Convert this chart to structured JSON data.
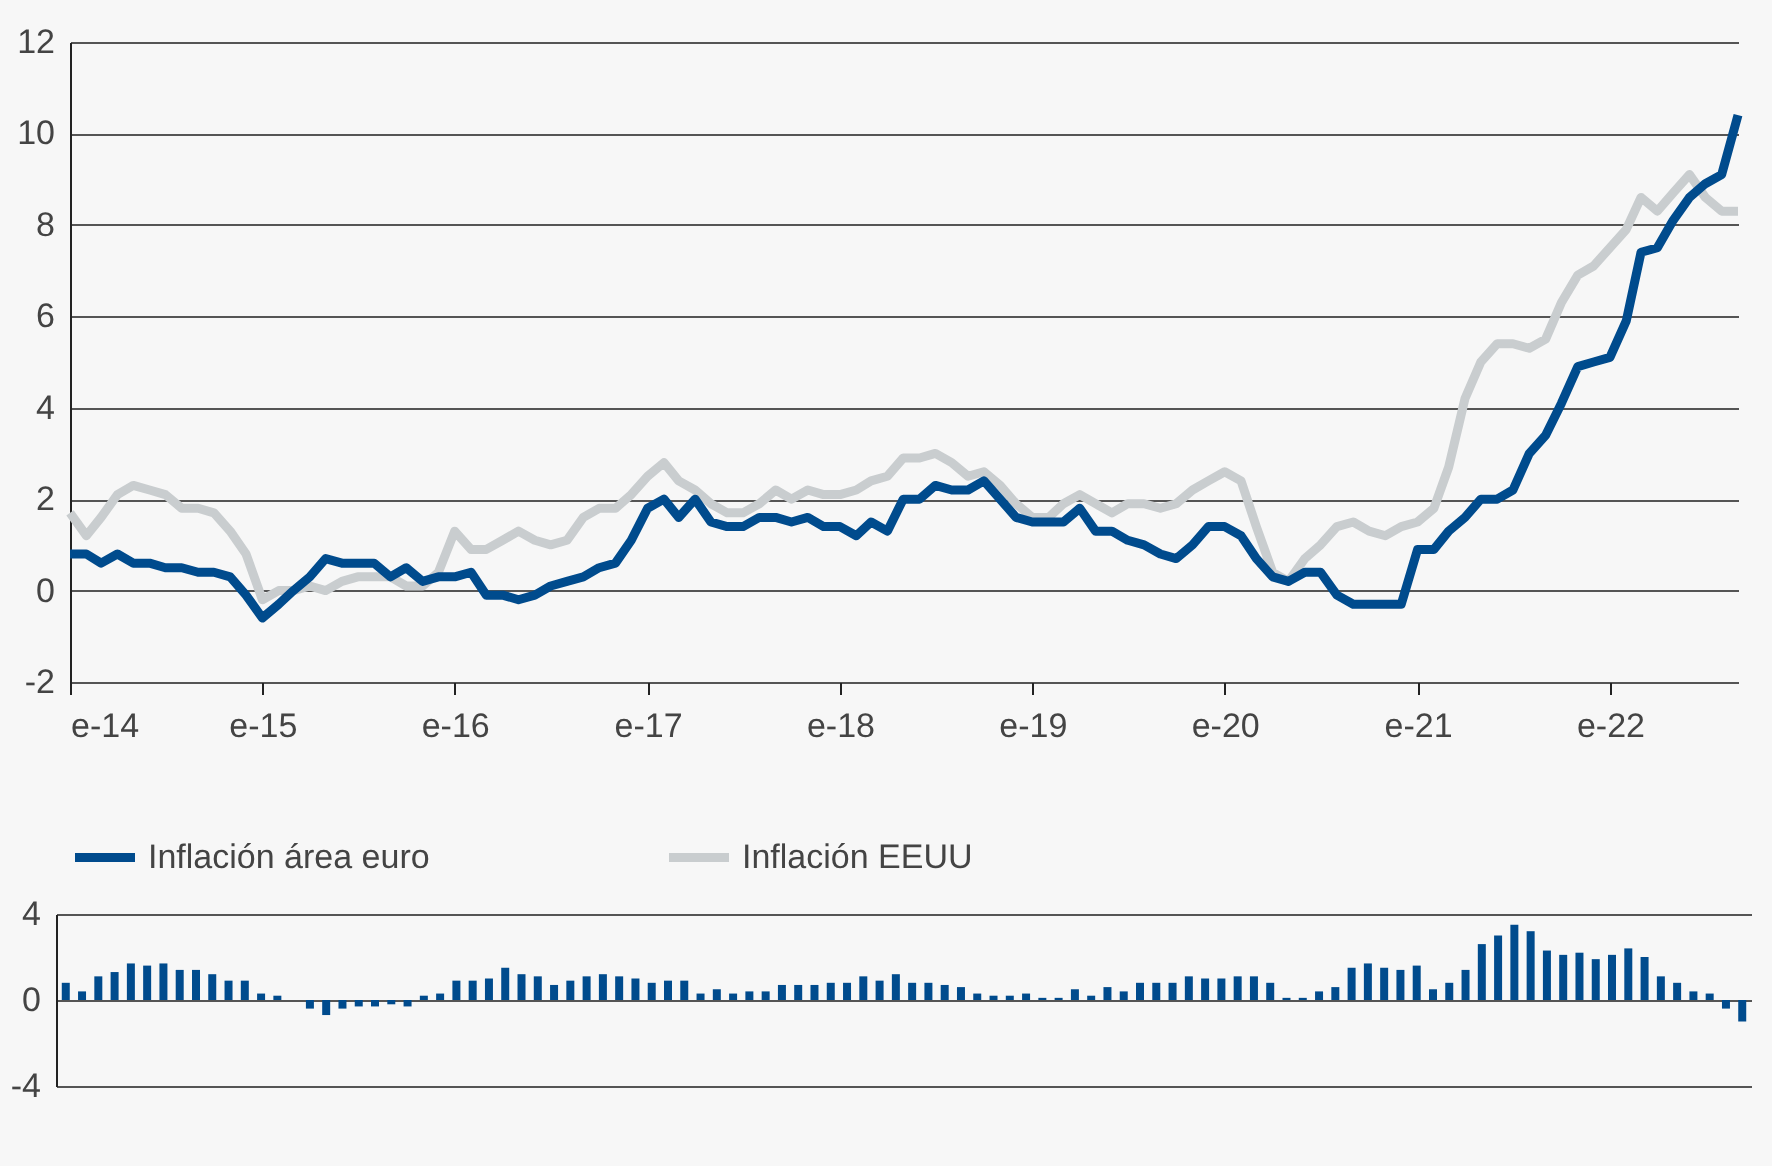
{
  "chart_data": [
    {
      "type": "line",
      "x": [
        "2014-01",
        "2014-02",
        "2014-03",
        "2014-04",
        "2014-05",
        "2014-06",
        "2014-07",
        "2014-08",
        "2014-09",
        "2014-10",
        "2014-11",
        "2014-12",
        "2015-01",
        "2015-02",
        "2015-03",
        "2015-04",
        "2015-05",
        "2015-06",
        "2015-07",
        "2015-08",
        "2015-09",
        "2015-10",
        "2015-11",
        "2015-12",
        "2016-01",
        "2016-02",
        "2016-03",
        "2016-04",
        "2016-05",
        "2016-06",
        "2016-07",
        "2016-08",
        "2016-09",
        "2016-10",
        "2016-11",
        "2016-12",
        "2017-01",
        "2017-02",
        "2017-03",
        "2017-04",
        "2017-05",
        "2017-06",
        "2017-07",
        "2017-08",
        "2017-09",
        "2017-10",
        "2017-11",
        "2017-12",
        "2018-01",
        "2018-02",
        "2018-03",
        "2018-04",
        "2018-05",
        "2018-06",
        "2018-07",
        "2018-08",
        "2018-09",
        "2018-10",
        "2018-11",
        "2018-12",
        "2019-01",
        "2019-02",
        "2019-03",
        "2019-04",
        "2019-05",
        "2019-06",
        "2019-07",
        "2019-08",
        "2019-09",
        "2019-10",
        "2019-11",
        "2019-12",
        "2020-01",
        "2020-02",
        "2020-03",
        "2020-04",
        "2020-05",
        "2020-06",
        "2020-07",
        "2020-08",
        "2020-09",
        "2020-10",
        "2020-11",
        "2020-12",
        "2021-01",
        "2021-02",
        "2021-03",
        "2021-04",
        "2021-05",
        "2021-06",
        "2021-07",
        "2021-08",
        "2021-09",
        "2021-10",
        "2021-11",
        "2021-12",
        "2022-01",
        "2022-02",
        "2022-03",
        "2022-04",
        "2022-05",
        "2022-06",
        "2022-07",
        "2022-08",
        "2022-09"
      ],
      "series": [
        {
          "name": "Inflación área euro",
          "color": "#004b8d",
          "values": [
            0.8,
            0.8,
            0.6,
            0.8,
            0.6,
            0.6,
            0.5,
            0.5,
            0.4,
            0.4,
            0.3,
            -0.1,
            -0.6,
            -0.3,
            0.0,
            0.3,
            0.7,
            0.6,
            0.6,
            0.6,
            0.3,
            0.5,
            0.2,
            0.3,
            0.3,
            0.4,
            -0.1,
            -0.1,
            -0.2,
            -0.1,
            0.1,
            0.2,
            0.3,
            0.5,
            0.6,
            1.1,
            1.8,
            2.0,
            1.6,
            2.0,
            1.5,
            1.4,
            1.4,
            1.6,
            1.6,
            1.5,
            1.6,
            1.4,
            1.4,
            1.2,
            1.5,
            1.3,
            2.0,
            2.0,
            2.3,
            2.2,
            2.2,
            2.4,
            2.0,
            1.6,
            1.5,
            1.5,
            1.5,
            1.8,
            1.3,
            1.3,
            1.1,
            1.0,
            0.8,
            0.7,
            1.0,
            1.4,
            1.4,
            1.2,
            0.7,
            0.3,
            0.2,
            0.4,
            0.4,
            -0.1,
            -0.3,
            -0.3,
            -0.3,
            -0.3,
            0.9,
            0.9,
            1.3,
            1.6,
            2.0,
            2.0,
            2.2,
            3.0,
            3.4,
            4.1,
            4.9,
            5.0,
            5.1,
            5.9,
            7.4,
            7.5,
            8.1,
            8.6,
            8.9,
            9.1,
            10.4
          ]
        },
        {
          "name": "Inflación EEUU",
          "color": "#c9cdcf",
          "values": [
            1.7,
            1.2,
            1.6,
            2.1,
            2.3,
            2.2,
            2.1,
            1.8,
            1.8,
            1.7,
            1.3,
            0.8,
            -0.2,
            0.0,
            0.0,
            0.1,
            0.0,
            0.2,
            0.3,
            0.3,
            0.3,
            0.1,
            0.1,
            0.4,
            1.3,
            0.9,
            0.9,
            1.1,
            1.3,
            1.1,
            1.0,
            1.1,
            1.6,
            1.8,
            1.8,
            2.1,
            2.5,
            2.8,
            2.4,
            2.2,
            1.9,
            1.7,
            1.7,
            1.9,
            2.2,
            2.0,
            2.2,
            2.1,
            2.1,
            2.2,
            2.4,
            2.5,
            2.9,
            2.9,
            3.0,
            2.8,
            2.5,
            2.6,
            2.3,
            1.9,
            1.6,
            1.6,
            1.9,
            2.1,
            1.9,
            1.7,
            1.9,
            1.9,
            1.8,
            1.9,
            2.2,
            2.4,
            2.6,
            2.4,
            1.4,
            0.4,
            0.2,
            0.7,
            1.0,
            1.4,
            1.5,
            1.3,
            1.2,
            1.4,
            1.5,
            1.8,
            2.7,
            4.2,
            5.0,
            5.4,
            5.4,
            5.3,
            5.5,
            6.3,
            6.9,
            7.1,
            7.5,
            7.9,
            8.6,
            8.3,
            8.7,
            9.1,
            8.6,
            8.3,
            8.3
          ]
        }
      ],
      "xlim": [
        "2014-01",
        "2022-09"
      ],
      "xticks": [
        {
          "value": "2014-01",
          "label": "e-14"
        },
        {
          "value": "2015-01",
          "label": "e-15"
        },
        {
          "value": "2016-01",
          "label": "e-16"
        },
        {
          "value": "2017-01",
          "label": "e-17"
        },
        {
          "value": "2018-01",
          "label": "e-18"
        },
        {
          "value": "2019-01",
          "label": "e-19"
        },
        {
          "value": "2020-01",
          "label": "e-20"
        },
        {
          "value": "2021-01",
          "label": "e-21"
        },
        {
          "value": "2022-01",
          "label": "e-22"
        }
      ],
      "ylim": [
        -2,
        12
      ],
      "yticks": [
        -2,
        0,
        2,
        4,
        6,
        8,
        10,
        12
      ],
      "grid": "y",
      "legend": "bottom",
      "line_style": "solid"
    },
    {
      "type": "bar",
      "categories": [
        null,
        null,
        null,
        null,
        null,
        null,
        null,
        null,
        null,
        null,
        null,
        null,
        null,
        null,
        null,
        null,
        null,
        null,
        null,
        null,
        null,
        null,
        null,
        null,
        null,
        null,
        null,
        null,
        null,
        null,
        null,
        null,
        null,
        null,
        null,
        null,
        null,
        null,
        null,
        null,
        null,
        null,
        null,
        null,
        null,
        null,
        null,
        null,
        null,
        null,
        null,
        null,
        null,
        null,
        null,
        null,
        null,
        null,
        null,
        null,
        null,
        null,
        null,
        null,
        null,
        null,
        null,
        null,
        null,
        null,
        null,
        null,
        null,
        null,
        null,
        null,
        null,
        null,
        null,
        null,
        null,
        null,
        null,
        null,
        null,
        null,
        null,
        null,
        null,
        null,
        null,
        null,
        null,
        null,
        null,
        null,
        null,
        null,
        null,
        null,
        null,
        null,
        null,
        null
      ],
      "values": [
        0.8,
        0.4,
        1.1,
        1.3,
        1.7,
        1.6,
        1.7,
        1.4,
        1.4,
        1.2,
        0.9,
        0.9,
        0.3,
        0.2,
        0.0,
        -0.4,
        -0.7,
        -0.4,
        -0.3,
        -0.3,
        -0.2,
        -0.3,
        0.2,
        0.3,
        0.9,
        0.9,
        1.0,
        1.5,
        1.2,
        1.1,
        0.7,
        0.9,
        1.1,
        1.2,
        1.1,
        1.0,
        0.8,
        0.9,
        0.9,
        0.3,
        0.5,
        0.3,
        0.4,
        0.4,
        0.7,
        0.7,
        0.7,
        0.8,
        0.8,
        1.1,
        0.9,
        1.2,
        0.8,
        0.8,
        0.7,
        0.6,
        0.3,
        0.2,
        0.2,
        0.3,
        0.1,
        0.1,
        0.5,
        0.2,
        0.6,
        0.4,
        0.8,
        0.8,
        0.8,
        1.1,
        1.0,
        1.0,
        1.1,
        1.1,
        0.8,
        0.1,
        0.1,
        0.4,
        0.6,
        1.5,
        1.7,
        1.5,
        1.4,
        1.6,
        0.5,
        0.8,
        1.4,
        2.6,
        3.0,
        3.5,
        3.2,
        2.3,
        2.1,
        2.2,
        1.9,
        2.1,
        2.4,
        2.0,
        1.1,
        0.8,
        0.4,
        0.3,
        -0.4,
        -1.0
      ],
      "color": "#004b8d",
      "ylim": [
        -4,
        4
      ],
      "yticks": [
        -4,
        0,
        4
      ],
      "grid": "y",
      "tick_labels": "y"
    }
  ]
}
